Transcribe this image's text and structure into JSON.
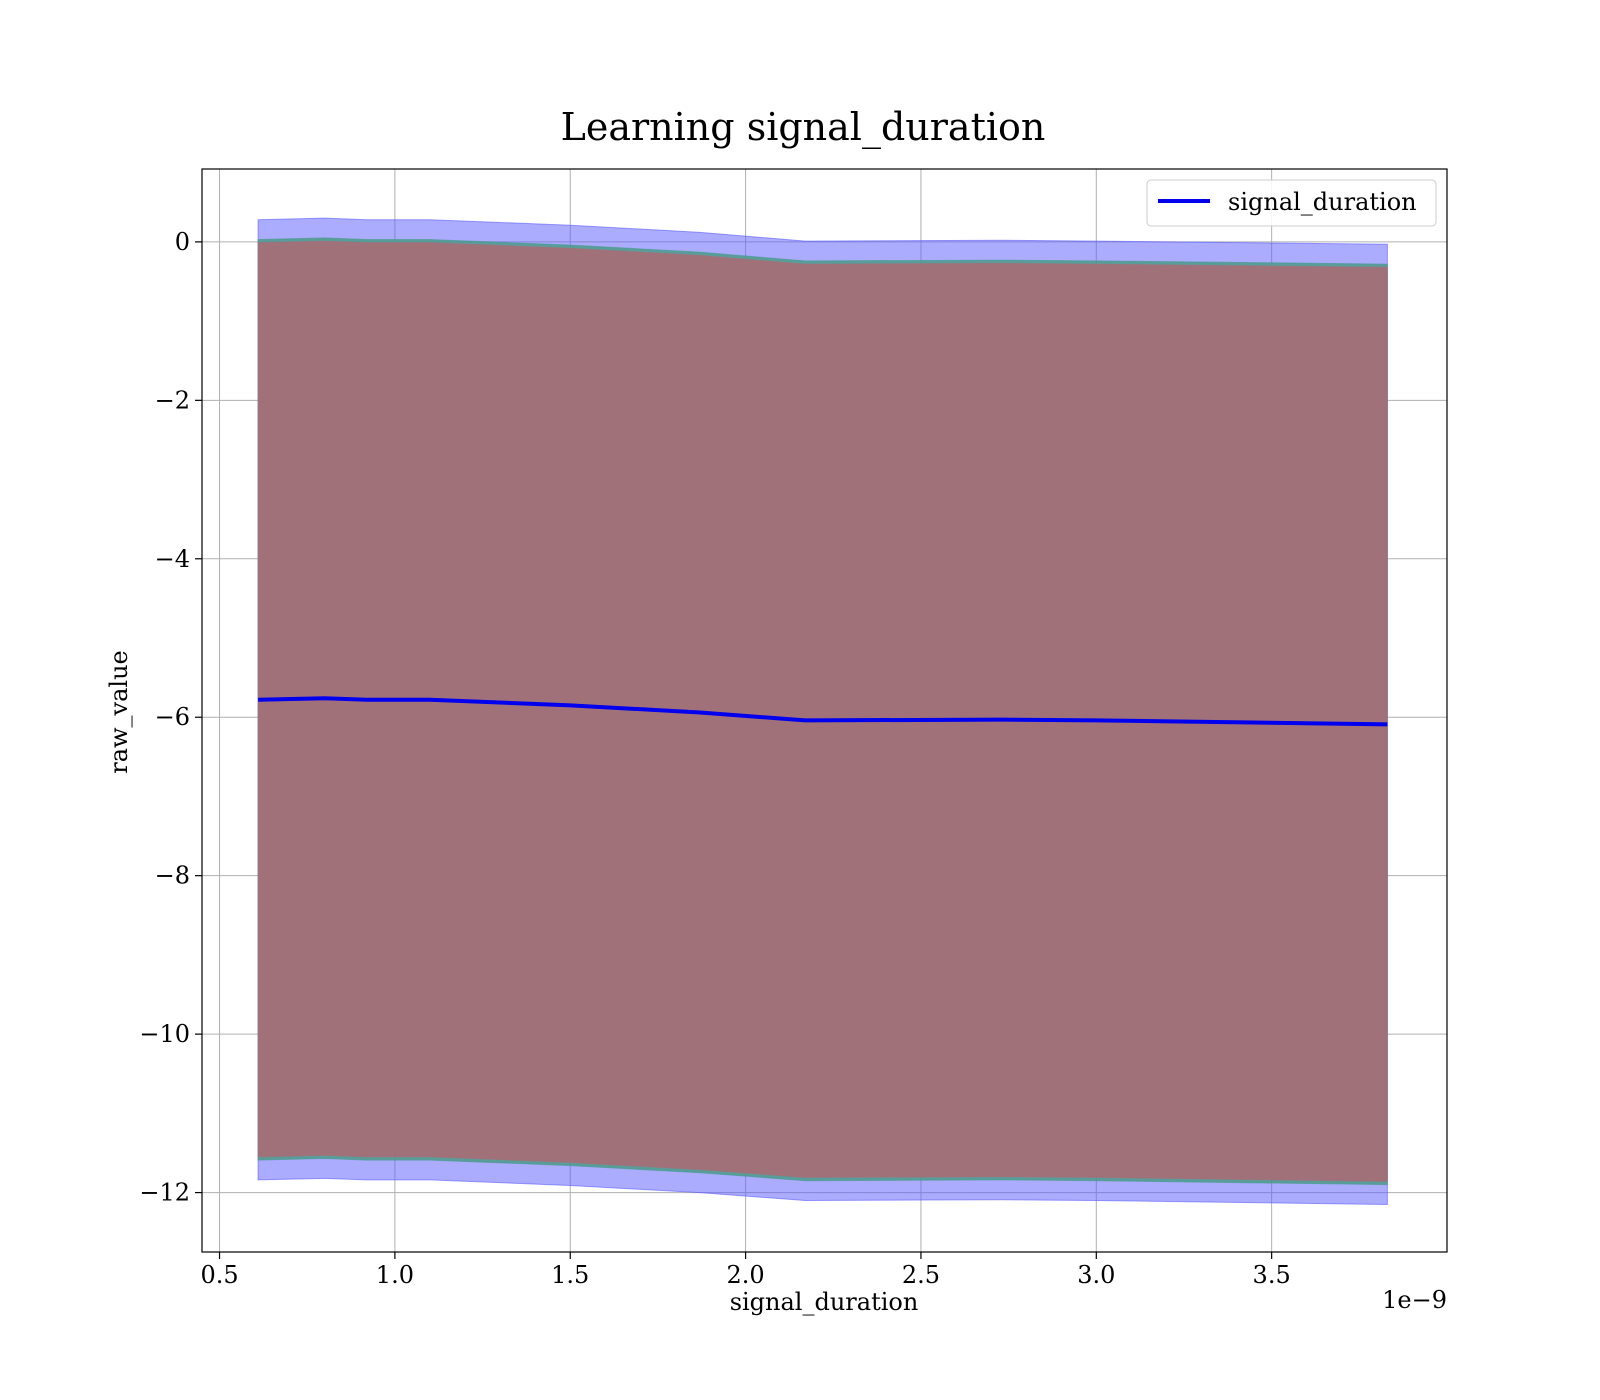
{
  "chart_data": {
    "type": "line",
    "title": "Learning signal_duration",
    "xlabel": "signal_duration",
    "ylabel": "raw_value",
    "x_offset_label": "1e−9",
    "xlim": [
      0.45,
      4.0
    ],
    "ylim": [
      -12.75,
      0.92
    ],
    "x_ticks": [
      0.5,
      1.0,
      1.5,
      2.0,
      2.5,
      3.0,
      3.5
    ],
    "x_tick_labels": [
      "0.5",
      "1.0",
      "1.5",
      "2.0",
      "2.5",
      "3.0",
      "3.5"
    ],
    "y_ticks": [
      0,
      -2,
      -4,
      -6,
      -8,
      -10,
      -12
    ],
    "y_tick_labels": [
      "0",
      "−2",
      "−4",
      "−6",
      "−8",
      "−10",
      "−12"
    ],
    "grid": true,
    "legend_position": "top-right",
    "x": [
      0.61,
      0.8,
      0.92,
      1.1,
      1.5,
      1.87,
      2.17,
      2.73,
      3.0,
      3.83
    ],
    "series": [
      {
        "name": "signal_duration",
        "color": "#0000ee",
        "values": [
          -5.78,
          -5.76,
          -5.78,
          -5.78,
          -5.85,
          -5.94,
          -6.04,
          -6.03,
          -6.04,
          -6.09
        ]
      }
    ],
    "bands": [
      {
        "color": "#5a5aff",
        "opacity": 0.5,
        "upper": [
          0.28,
          0.3,
          0.28,
          0.28,
          0.21,
          0.12,
          0.01,
          0.02,
          0.01,
          -0.03
        ],
        "lower": [
          -11.84,
          -11.82,
          -11.84,
          -11.84,
          -11.91,
          -12.0,
          -12.1,
          -12.09,
          -12.1,
          -12.15
        ]
      },
      {
        "color": "#4a9a8a",
        "opacity": 0.85,
        "upper": [
          0.03,
          0.05,
          0.03,
          0.03,
          -0.04,
          -0.13,
          -0.24,
          -0.23,
          -0.24,
          -0.28
        ],
        "lower": [
          -11.59,
          -11.57,
          -11.59,
          -11.59,
          -11.66,
          -11.75,
          -11.85,
          -11.84,
          -11.85,
          -11.9
        ]
      },
      {
        "color": "#a1717a",
        "opacity": 1.0,
        "upper": [
          -0.01,
          0.01,
          -0.01,
          -0.01,
          -0.08,
          -0.17,
          -0.28,
          -0.27,
          -0.28,
          -0.32
        ],
        "lower": [
          -11.55,
          -11.53,
          -11.55,
          -11.55,
          -11.62,
          -11.71,
          -11.81,
          -11.8,
          -11.81,
          -11.86
        ]
      }
    ]
  }
}
